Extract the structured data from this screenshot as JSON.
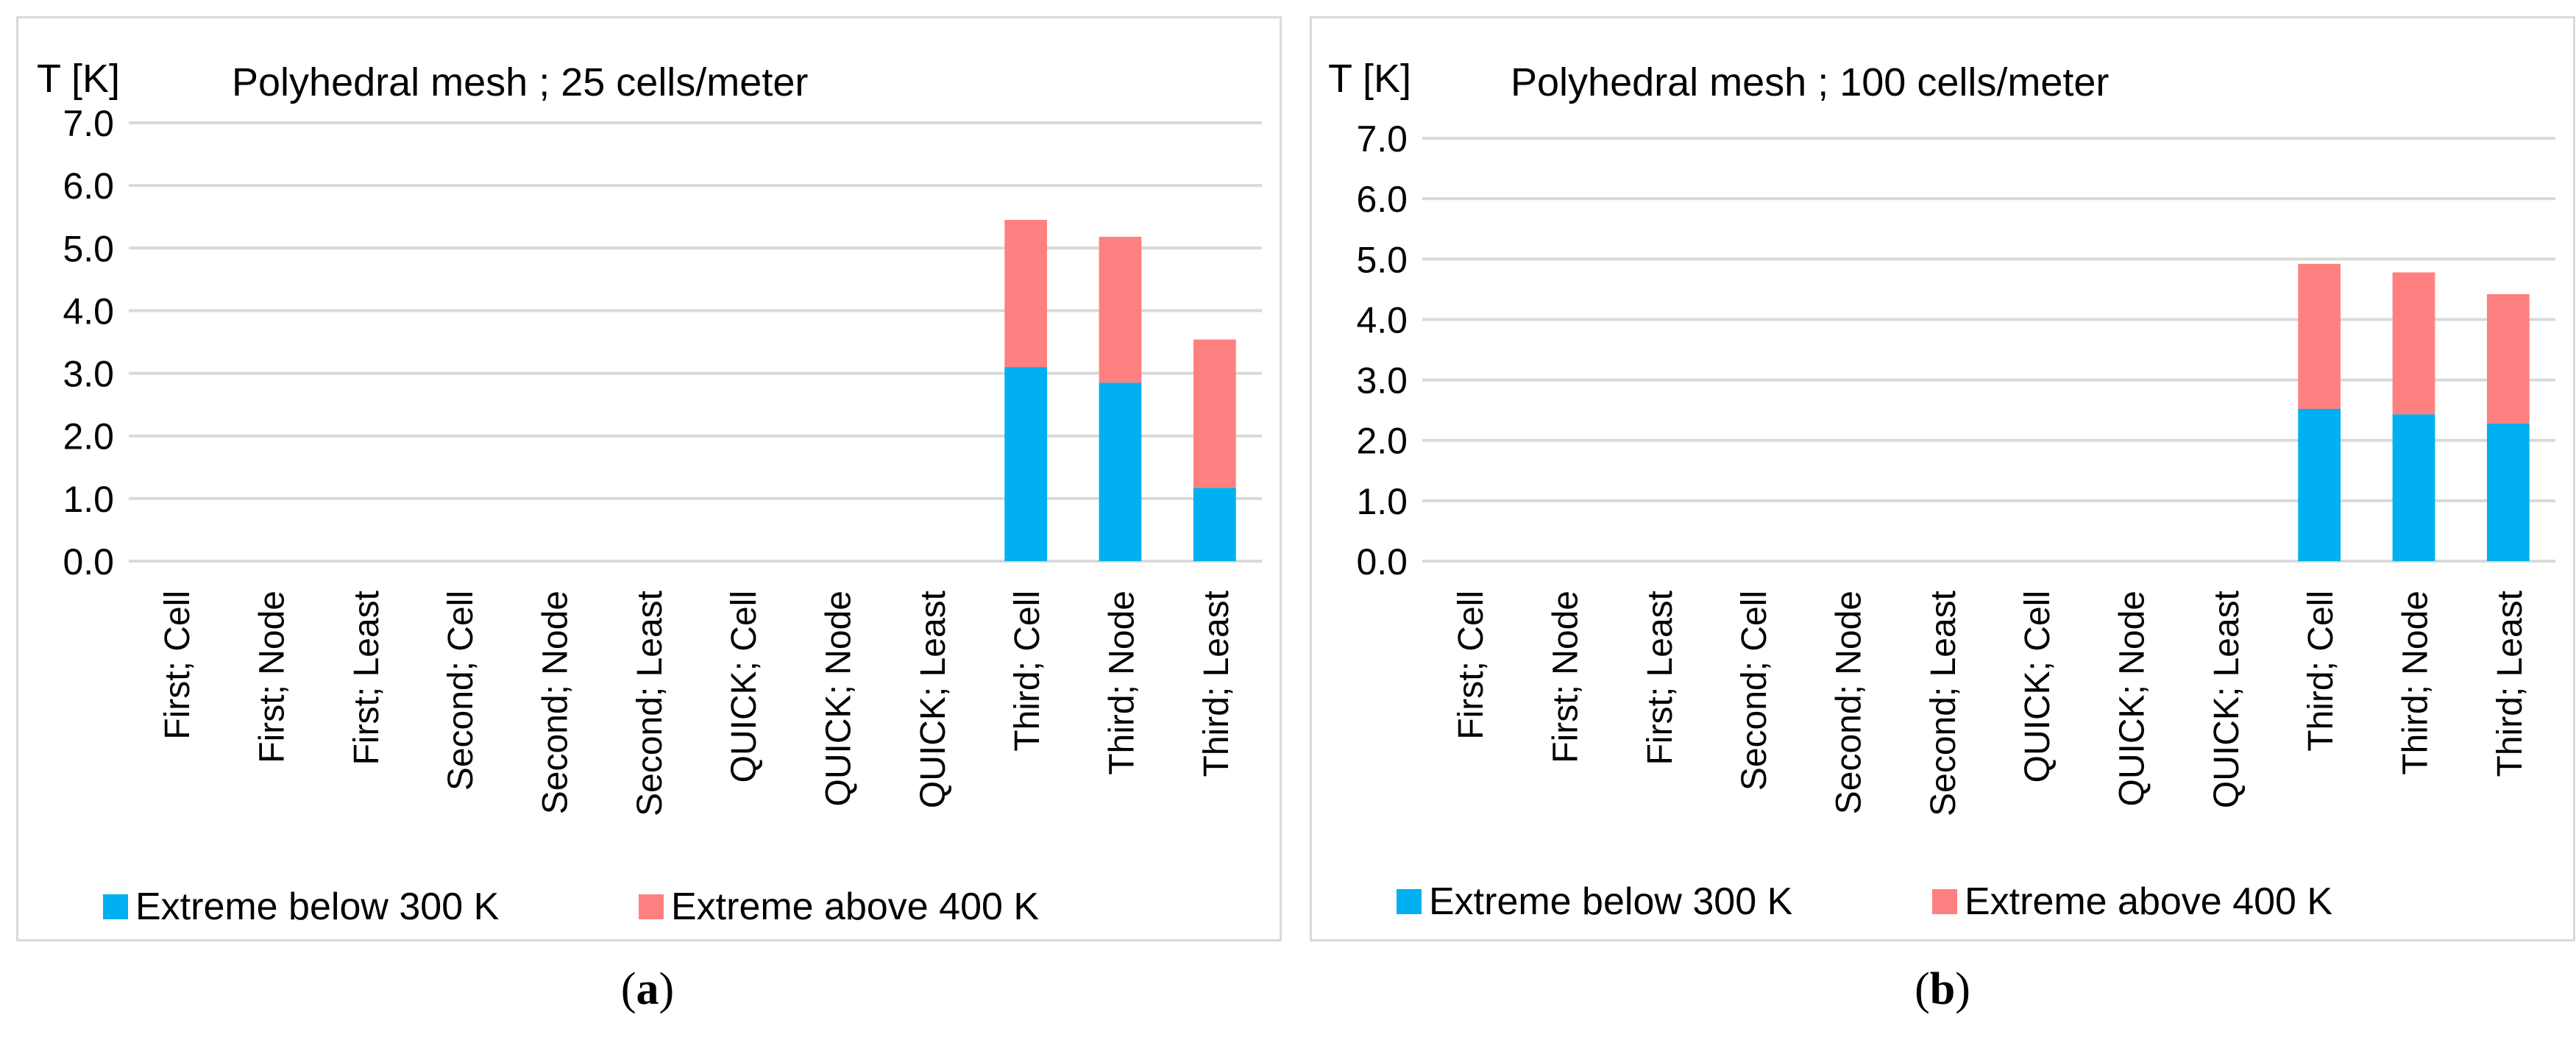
{
  "panels": [
    {
      "id": "a",
      "caption_letter": "a",
      "chart_data": {
        "type": "bar",
        "stacked": true,
        "title": "Polyhedral mesh ; 25 cells/meter",
        "ylabel": "T [K]",
        "ylabel_color": "#7f7f7f",
        "xlabel": "",
        "ylim": [
          0,
          7
        ],
        "yticks": [
          "0.0",
          "1.0",
          "2.0",
          "3.0",
          "4.0",
          "5.0",
          "6.0",
          "7.0"
        ],
        "grid": true,
        "legend_position": "bottom",
        "categories": [
          "First; Cell",
          "First; Node",
          "First; Least",
          "Second; Cell",
          "Second; Node",
          "Second; Least",
          "QUICK; Cell",
          "QUICK; Node",
          "QUICK; Least",
          "Third; Cell",
          "Third; Node",
          "Third; Least"
        ],
        "series": [
          {
            "name": "Extreme below 300 K",
            "color": "#00b0f0",
            "values": [
              0,
              0,
              0,
              0,
              0,
              0,
              0,
              0,
              0,
              3.1,
              2.85,
              1.17
            ]
          },
          {
            "name": "Extreme above 400 K",
            "color": "#ff8080",
            "values": [
              0,
              0,
              0,
              0,
              0,
              0,
              0,
              0,
              0,
              2.35,
              2.33,
              2.37
            ]
          }
        ]
      }
    },
    {
      "id": "b",
      "caption_letter": "b",
      "chart_data": {
        "type": "bar",
        "stacked": true,
        "title": "Polyhedral mesh ; 100 cells/meter",
        "ylabel": "T [K]",
        "ylabel_color": "#000000",
        "xlabel": "",
        "ylim": [
          0,
          7
        ],
        "yticks": [
          "0.0",
          "1.0",
          "2.0",
          "3.0",
          "4.0",
          "5.0",
          "6.0",
          "7.0"
        ],
        "grid": true,
        "legend_position": "bottom",
        "categories": [
          "First; Cell",
          "First; Node",
          "First; Least",
          "Second; Cell",
          "Second; Node",
          "Second; Least",
          "QUICK; Cell",
          "QUICK; Node",
          "QUICK; Least",
          "Third; Cell",
          "Third; Node",
          "Third; Least"
        ],
        "series": [
          {
            "name": "Extreme below 300 K",
            "color": "#00b0f0",
            "values": [
              0,
              0,
              0,
              0,
              0,
              0,
              0,
              0,
              0,
              2.52,
              2.43,
              2.28
            ]
          },
          {
            "name": "Extreme above 400 K",
            "color": "#ff8080",
            "values": [
              0,
              0,
              0,
              0,
              0,
              0,
              0,
              0,
              0,
              2.4,
              2.35,
              2.14
            ]
          }
        ]
      }
    }
  ]
}
